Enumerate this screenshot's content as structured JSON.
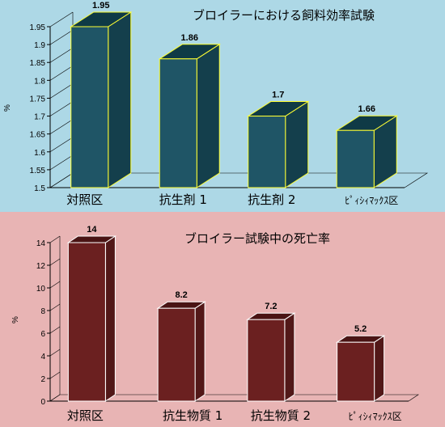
{
  "charts": {
    "top": {
      "background": "#add8e6",
      "bar_front": "#1f5566",
      "bar_top": "#0f3a46",
      "bar_side": "#143f4c",
      "bar_outline": "#ffff33"
    },
    "bottom": {
      "background": "#e8b4b4",
      "bar_front": "#6b2020",
      "bar_top": "#4a1414",
      "bar_side": "#521818",
      "bar_outline": "#ffffff"
    }
  },
  "chart_data": [
    {
      "type": "bar",
      "title": "ブロイラーにおける飼料効率試験",
      "ylabel": "%",
      "categories": [
        "対照区",
        "抗生剤 1",
        "抗生剤 2",
        "ﾋﾟｨｼｨﾏｯｸｽ区"
      ],
      "values": [
        1.95,
        1.86,
        1.7,
        1.66
      ],
      "data_labels": [
        "1.95",
        "1.86",
        "1.7",
        "1.66"
      ],
      "ylim": [
        1.5,
        1.95
      ],
      "yticks": [
        "1.5",
        "1.55",
        "1.6",
        "1.65",
        "1.7",
        "1.75",
        "1.8",
        "1.85",
        "1.9",
        "1.95"
      ],
      "grid": false
    },
    {
      "type": "bar",
      "title": "ブロイラー試験中の死亡率",
      "ylabel": "%",
      "categories": [
        "対照区",
        "抗生物質 1",
        "抗生物質 2",
        "ﾋﾟｨｼｨﾏｯｸｽ区"
      ],
      "values": [
        14,
        8.2,
        7.2,
        5.2
      ],
      "data_labels": [
        "14",
        "8.2",
        "7.2",
        "5.2"
      ],
      "ylim": [
        0,
        14
      ],
      "yticks": [
        "0",
        "2",
        "4",
        "6",
        "8",
        "10",
        "12",
        "14"
      ],
      "grid": false
    }
  ]
}
